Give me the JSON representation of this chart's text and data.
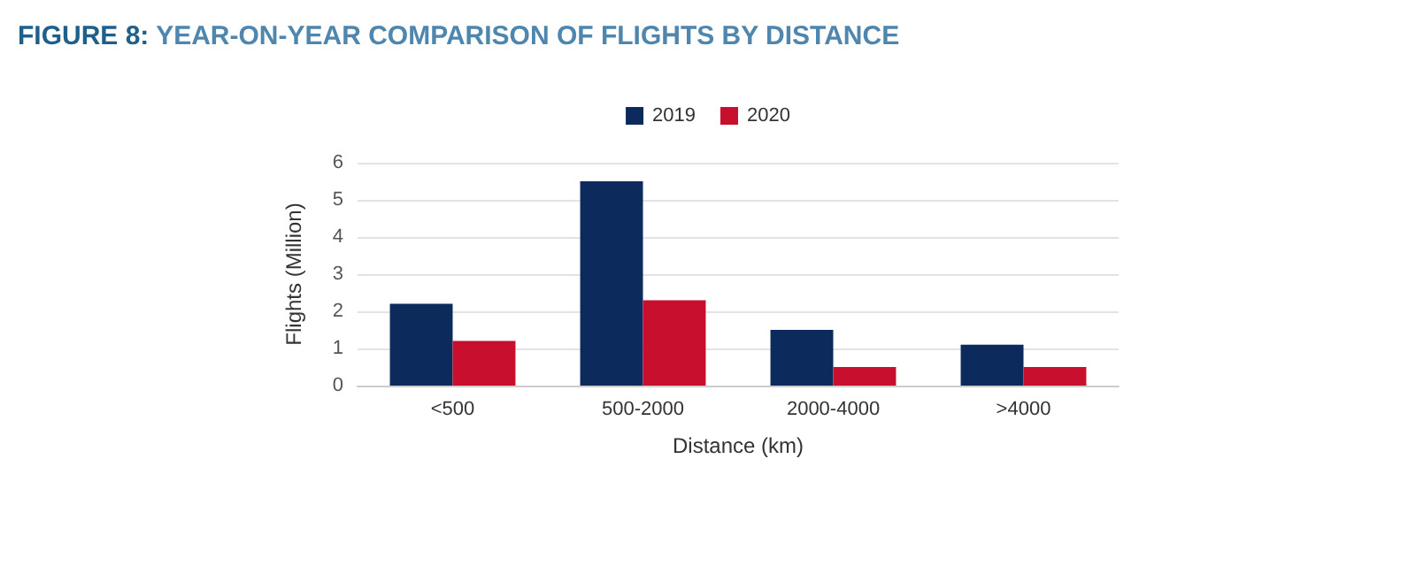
{
  "chart_data": {
    "type": "bar",
    "title": "FIGURE 8: YEAR-ON-YEAR COMPARISON OF FLIGHTS BY DISTANCE",
    "xlabel": "Distance (km)",
    "ylabel": "Flights (Million)",
    "categories": [
      "<500",
      "500-2000",
      "2000-4000",
      ">4000"
    ],
    "series": [
      {
        "name": "2019",
        "color": "#0d2a5c",
        "values": [
          2.2,
          5.5,
          1.5,
          1.1
        ]
      },
      {
        "name": "2020",
        "color": "#c8102e",
        "values": [
          1.2,
          2.3,
          0.5,
          0.5
        ]
      }
    ],
    "ylim": [
      0,
      6
    ],
    "yticks": [
      0,
      1,
      2,
      3,
      4,
      5,
      6
    ],
    "grid": "y",
    "legend": "top"
  }
}
